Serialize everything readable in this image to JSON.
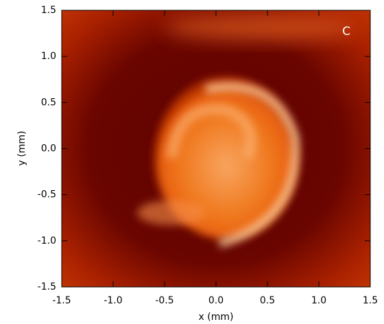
{
  "chart_data": {
    "type": "image",
    "xlabel": "x (mm)",
    "ylabel": "y (mm)",
    "annotation": "C",
    "xlim": [
      -1.5,
      1.5
    ],
    "ylim": [
      -1.5,
      1.5
    ],
    "xticks": [
      -1.5,
      {
        "value": -1.0,
        "label": "-1.0"
      },
      -0.5,
      {
        "value": 0.0,
        "label": "0.0"
      },
      0.5,
      {
        "value": 1.0,
        "label": "1.0"
      },
      1.5
    ],
    "yticks": [
      -1.5,
      {
        "value": -1.0,
        "label": "-1.0"
      },
      -0.5,
      {
        "value": 0.0,
        "label": "0.0"
      },
      0.5,
      {
        "value": 1.0,
        "label": "1.0"
      },
      1.5
    ]
  }
}
